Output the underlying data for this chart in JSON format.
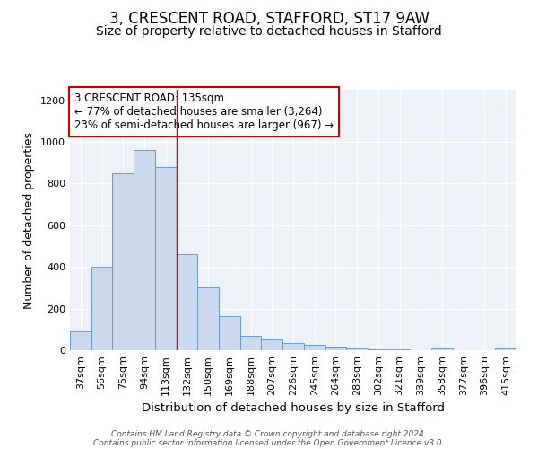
{
  "title": "3, CRESCENT ROAD, STAFFORD, ST17 9AW",
  "subtitle": "Size of property relative to detached houses in Stafford",
  "xlabel": "Distribution of detached houses by size in Stafford",
  "ylabel": "Number of detached properties",
  "categories": [
    "37sqm",
    "56sqm",
    "75sqm",
    "94sqm",
    "113sqm",
    "132sqm",
    "150sqm",
    "169sqm",
    "188sqm",
    "207sqm",
    "226sqm",
    "245sqm",
    "264sqm",
    "283sqm",
    "302sqm",
    "321sqm",
    "339sqm",
    "358sqm",
    "377sqm",
    "396sqm",
    "415sqm"
  ],
  "values": [
    90,
    400,
    850,
    960,
    880,
    460,
    300,
    165,
    70,
    52,
    35,
    25,
    18,
    8,
    5,
    5,
    0,
    10,
    0,
    0,
    10
  ],
  "bar_color": "#ccdaf0",
  "bar_edge_color": "#6699cc",
  "reference_line_x": 4.5,
  "reference_line_color": "#cc0000",
  "annotation_text": "3 CRESCENT ROAD: 135sqm\n← 77% of detached houses are smaller (3,264)\n23% of semi-detached houses are larger (967) →",
  "annotation_box_color": "white",
  "annotation_box_edge_color": "#cc0000",
  "ylim": [
    0,
    1250
  ],
  "yticks": [
    0,
    200,
    400,
    600,
    800,
    1000,
    1200
  ],
  "background_color": "#eef2f8",
  "grid_color": "white",
  "footer_line1": "Contains HM Land Registry data © Crown copyright and database right 2024.",
  "footer_line2": "Contains public sector information licensed under the Open Government Licence v3.0.",
  "title_fontsize": 12,
  "subtitle_fontsize": 10,
  "xlabel_fontsize": 9.5,
  "ylabel_fontsize": 9,
  "annotation_fontsize": 8.5,
  "tick_fontsize": 8,
  "footer_fontsize": 6.5
}
